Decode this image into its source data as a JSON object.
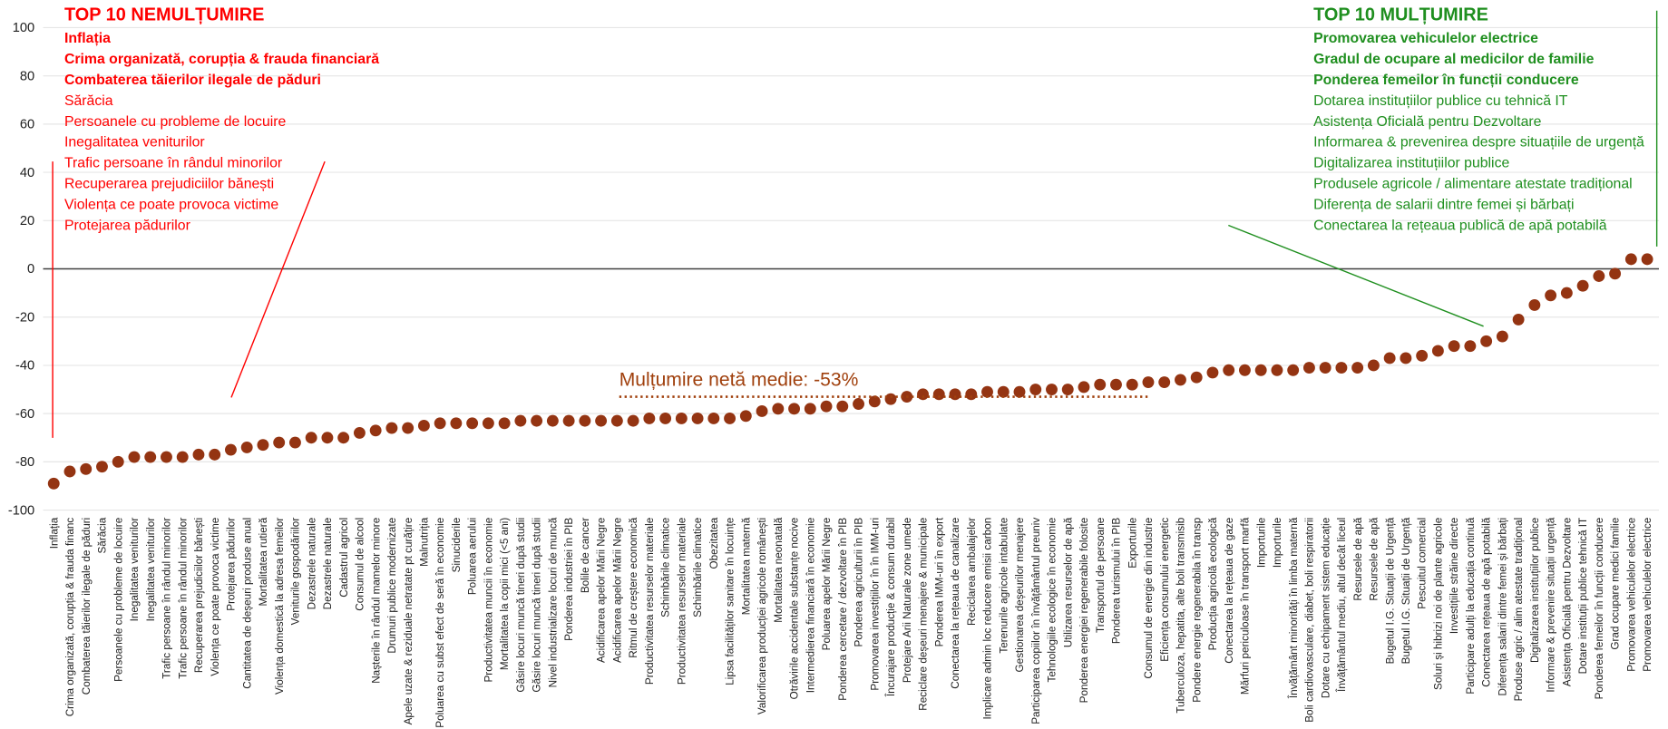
{
  "chart_data": {
    "type": "scatter",
    "categories": [
      "Inflația",
      "Crima organizată, corupția & frauda financ",
      "Combaterea tăierilor ilegale de păduri",
      "Sărăcia",
      "Persoanele cu probleme de locuire",
      "Inegalitatea veniturilor",
      "Inegalitatea veniturilor",
      "Trafic persoane în rândul minorilor",
      "Trafic persoane în rândul minorilor",
      "Recuperarea prejudiciilor bănești",
      "Violența ce poate provoca victime",
      "Protejarea pădurilor",
      "Cantitatea de deșeuri produse anual",
      "Mortalitatea rutieră",
      "Violența domestică la adresa femeilor",
      "Veniturile gospodăriilor",
      "Dezastrele naturale",
      "Dezastrele naturale",
      "Cadastrul agricol",
      "Consumul de alcool",
      "Nașterile în rândul mamelor minore",
      "Drumuri publice modernizate",
      "Apele uzate & reziduale netratate pt curățire",
      "Malnutriția",
      "Poluarea cu subst efect de seră în economie",
      "Sinuciderile",
      "Poluarea aerului",
      "Productivitatea muncii în economie",
      "Mortalitatea la copii mici (<5 ani)",
      "Găsire locuri muncă tineri după studii",
      "Găsire locuri muncă tineri după studii",
      "Nivel industrializare locuri de muncă",
      "Ponderea industriei în PIB",
      "Bolile de cancer",
      "Acidificarea apelor Mării Negre",
      "Acidificarea apelor Mării Negre",
      "Ritmul de creștere economică",
      "Productivitatea resurselor materiale",
      "Schimbările climatice",
      "Productivitatea resurselor materiale",
      "Schimbările climatice",
      "Obezitatea",
      "Lipsa facilităților sanitare în locuințe",
      "Mortalitatea maternă",
      "Valorificarea producției agricole românești",
      "Mortalitatea neonatală",
      "Otrăvirile accidentale substanțe nocive",
      "Intermedierea financiară în economie",
      "Poluarea apelor Mării Negre",
      "Ponderea cercetare / dezvoltare în PIB",
      "Ponderea agriculturii în PIB",
      "Promovarea investițiilor în în IMM-uri",
      "Încurajare producție & consum durabil",
      "Protejare Arii Naturale zone umede",
      "Reciclare deșeuri menajere & municipale",
      "Ponderea IMM-uri în export",
      "Conectarea la rețeaua de canalizare",
      "Reciclarea ambalajelor",
      "Implicare admin loc reducere emisii carbon",
      "Terenurile agricole intabulate",
      "Gestionarea deșeurilor menajere",
      "Participarea copiilor în învățământul preuniv",
      "Tehnologiile ecologice în economie",
      "Utilizarea resurselor de apă",
      "Ponderea energiei regenerabile folosite",
      "Transportul de persoane",
      "Ponderea turismului în PIB",
      "Exporturile",
      "Consumul de energie din industrie",
      "Eficiența consumului energetic",
      "Tuberculoza, hepatita, alte boli transmisib",
      "Pondere energie regenerabila în transp",
      "Producția agricolă ecologică",
      "Conectarea la rețeaua de gaze",
      "Mărfuri periculoase în transport marfă",
      "Importurile",
      "Importurile",
      "Învățământ minorități în limba maternă",
      "Boli cardiovasculare, diabet, boli respiratorii",
      "Dotare cu echipament sistem educație",
      "Învățământul mediu, altul decât liceul",
      "Resursele de apă",
      "Resursele de apă",
      "Bugetul I.G. Situații de Urgență",
      "Bugetul I.G. Situații de Urgență",
      "Pescuitul comercial",
      "Soluri și hibrizi noi de plante agricole",
      "Investițiile străine directe",
      "Participare adulți la educația continuă",
      "Conectarea rețeaua de apă potabilă",
      "Diferența salarii dintre femei și bărbați",
      "Produse agric / alim atestate tradițional",
      "Digitalizarea instituțiilor publice",
      "Informare & prevenire situații urgență",
      "Asistența Oficială pentru Dezvoltare",
      "Dotare instituții publice tehnică IT",
      "Ponderea femeilor în funcții conducere",
      "Grad ocupare medici familie",
      "Promovarea vehiculelor electrice",
      "Promovarea vehiculelor electrice"
    ],
    "values": [
      -89,
      -84,
      -83,
      -82,
      -80,
      -78,
      -78,
      -78,
      -78,
      -77,
      -77,
      -75,
      -74,
      -73,
      -72,
      -72,
      -70,
      -70,
      -70,
      -68,
      -67,
      -66,
      -66,
      -65,
      -64,
      -64,
      -64,
      -64,
      -64,
      -63,
      -63,
      -63,
      -63,
      -63,
      -63,
      -63,
      -63,
      -62,
      -62,
      -62,
      -62,
      -62,
      -62,
      -61,
      -59,
      -58,
      -58,
      -58,
      -57,
      -57,
      -56,
      -55,
      -54,
      -53,
      -52,
      -52,
      -52,
      -52,
      -51,
      -51,
      -51,
      -50,
      -50,
      -50,
      -49,
      -48,
      -48,
      -48,
      -47,
      -47,
      -46,
      -45,
      -43,
      -42,
      -42,
      -42,
      -42,
      -42,
      -41,
      -41,
      -41,
      -41,
      -40,
      -37,
      -37,
      -36,
      -34,
      -32,
      -32,
      -30,
      -28,
      -21,
      -15,
      -11,
      -10,
      -7,
      -3,
      -2,
      4,
      4
    ],
    "color": "#943412",
    "ylim": [
      -100,
      100
    ],
    "yticks": [
      -100,
      -80,
      -60,
      -40,
      -20,
      0,
      20,
      40,
      60,
      80,
      100
    ],
    "grid": true,
    "mean": -53,
    "mean_label": "Mulțumire netă medie: -53%",
    "top_negative": {
      "title": "TOP 10 NEMULȚUMIRE",
      "color": "#ff0000",
      "items": [
        "Inflația",
        "Crima organizată, corupția & frauda financiară",
        "Combaterea tăierilor ilegale de păduri",
        "Sărăcia",
        "Persoanele cu probleme de locuire",
        "Inegalitatea veniturilor",
        "Trafic persoane în rândul minorilor",
        "Recuperarea prejudiciilor bănești",
        "Violența ce poate provoca victime",
        "Protejarea pădurilor"
      ]
    },
    "top_positive": {
      "title": "TOP 10 MULȚUMIRE",
      "color": "#1f8f1f",
      "items": [
        "Promovarea vehiculelor electrice",
        "Gradul de ocupare al medicilor de familie",
        "Ponderea femeilor în funcții conducere",
        "Dotarea instituțiilor publice cu tehnică IT",
        "Asistența Oficială pentru Dezvoltare",
        "Informarea & prevenirea despre situațiile de urgență",
        "Digitalizarea instituțiilor publice",
        "Produsele agricole / alimentare atestate tradițional",
        "Diferența de salarii dintre femei și bărbați",
        "Conectarea la rețeaua publică de apă potabilă"
      ]
    }
  }
}
